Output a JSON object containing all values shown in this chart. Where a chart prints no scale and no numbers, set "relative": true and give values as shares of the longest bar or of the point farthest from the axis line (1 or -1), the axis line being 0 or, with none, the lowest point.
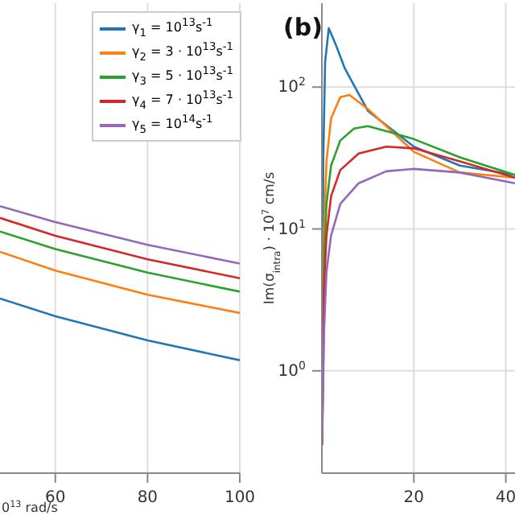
{
  "chart_data": [
    {
      "type": "line",
      "relative": true,
      "xlabel": "0$^{13}$ rad/s",
      "xlim": [
        48,
        100
      ],
      "xticks": [
        60,
        80,
        100
      ],
      "grid": "x",
      "legend": "top right",
      "series": [
        {
          "name": "γ$_{1}$ = 10$^{13}$s$^{-1}$",
          "color": "#1f77b4",
          "x": [
            48,
            60,
            80,
            100
          ],
          "values": [
            0.654,
            0.588,
            0.497,
            0.423
          ]
        },
        {
          "name": "γ$_{2}$ = 3 · 10$^{13}$s$^{-1}$",
          "color": "#ff7f0e",
          "x": [
            48,
            60,
            80,
            100
          ],
          "values": [
            0.829,
            0.759,
            0.668,
            0.6
          ]
        },
        {
          "name": "γ$_{3}$ = 5 · 10$^{13}$s$^{-1}$",
          "color": "#2ca02c",
          "x": [
            48,
            60,
            80,
            100
          ],
          "values": [
            0.905,
            0.839,
            0.751,
            0.68
          ]
        },
        {
          "name": "γ$_{4}$ = 7 · 10$^{13}$s$^{-1}$",
          "color": "#d62728",
          "x": [
            48,
            60,
            80,
            100
          ],
          "values": [
            0.956,
            0.889,
            0.801,
            0.73
          ]
        },
        {
          "name": "γ$_{5}$ = 10$^{14}$s$^{-1}$",
          "color": "#9467bd",
          "x": [
            48,
            60,
            80,
            100
          ],
          "values": [
            1,
            0.94,
            0.855,
            0.785
          ]
        }
      ]
    },
    {
      "type": "line",
      "ylabel": "Im(σ$_{intra}$) · 10$^{7}$ cm/s",
      "annotations": [
        "(b)"
      ],
      "log": true,
      "grid": true,
      "xlim": [
        0,
        42
      ],
      "xticks": [
        20,
        40
      ],
      "ylim": [
        0.19,
        390
      ],
      "yticks": [
        {
          "value": 1,
          "label": "10$^{0}$"
        },
        {
          "value": 10,
          "label": "10$^{1}$"
        },
        {
          "value": 100,
          "label": "10$^{2}$"
        }
      ],
      "series": [
        {
          "color": "#1f77b4",
          "x": [
            0.05,
            0.3,
            0.7,
            1.5,
            3,
            5,
            10,
            20,
            30,
            42
          ],
          "values": [
            0.3,
            30,
            150,
            260,
            200,
            135,
            68,
            38,
            28,
            24
          ]
        },
        {
          "color": "#ff7f0e",
          "x": [
            0.05,
            0.5,
            1,
            2,
            4,
            6,
            10,
            20,
            30,
            42
          ],
          "values": [
            0.3,
            10,
            30,
            60,
            85,
            88,
            70,
            35,
            25,
            23
          ]
        },
        {
          "color": "#2ca02c",
          "x": [
            0.05,
            0.5,
            1,
            2,
            4,
            7,
            10,
            15,
            20,
            30,
            42
          ],
          "values": [
            0.3,
            6,
            15,
            28,
            42,
            51,
            53,
            48,
            43,
            32,
            24
          ]
        },
        {
          "color": "#d62728",
          "x": [
            0.05,
            0.5,
            1,
            2,
            4,
            8,
            14,
            20,
            30,
            42
          ],
          "values": [
            0.3,
            4,
            9,
            17,
            26,
            34,
            38,
            37,
            30,
            23
          ]
        },
        {
          "color": "#9467bd",
          "x": [
            0.05,
            0.5,
            1,
            2,
            4,
            8,
            14,
            20,
            30,
            42
          ],
          "values": [
            0.3,
            2,
            5,
            9,
            15,
            21,
            25.5,
            26.5,
            25,
            21
          ]
        }
      ]
    }
  ]
}
